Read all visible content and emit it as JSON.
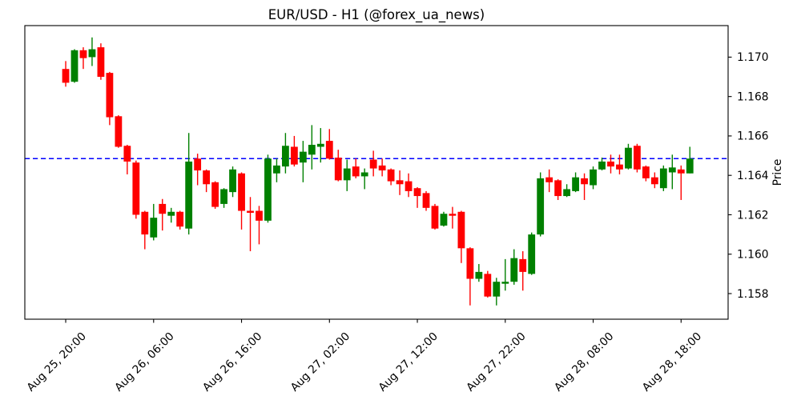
{
  "title": "EUR/USD - H1 (@forex_ua_news)",
  "chart_data": {
    "type": "candlestick",
    "title": "EUR/USD - H1 (@forex_ua_news)",
    "ylabel": "Price",
    "xlabel": "",
    "grid": false,
    "legend": "none",
    "ylim": [
      1.1567,
      1.1716
    ],
    "xlim": [
      -4.65,
      75.35
    ],
    "y_tick_labels": [
      "1.158",
      "1.160",
      "1.162",
      "1.164",
      "1.166",
      "1.168",
      "1.170"
    ],
    "x_ticks": [
      {
        "index": 0,
        "label": "Aug 25, 20:00"
      },
      {
        "index": 10,
        "label": "Aug 26, 06:00"
      },
      {
        "index": 20,
        "label": "Aug 26, 16:00"
      },
      {
        "index": 30,
        "label": "Aug 27, 02:00"
      },
      {
        "index": 40,
        "label": "Aug 27, 12:00"
      },
      {
        "index": 50,
        "label": "Aug 27, 22:00"
      },
      {
        "index": 60,
        "label": "Aug 28, 08:00"
      },
      {
        "index": 70,
        "label": "Aug 28, 18:00"
      }
    ],
    "hline": {
      "value": 1.16485,
      "color": "#0000ff",
      "style": "dashed"
    },
    "colors": {
      "up": "#008000",
      "down": "#ff0000",
      "axis": "#000000",
      "background": "#ffffff"
    },
    "candle_columns": [
      "time",
      "open",
      "high",
      "low",
      "close"
    ],
    "candles": [
      [
        "Aug 25, 20:00",
        1.1694,
        1.1698,
        1.1685,
        1.1687
      ],
      [
        "Aug 25, 21:00",
        1.16875,
        1.1704,
        1.1687,
        1.17035
      ],
      [
        "Aug 25, 22:00",
        1.17035,
        1.1705,
        1.1694,
        1.16995
      ],
      [
        "Aug 25, 23:00",
        1.17,
        1.171,
        1.16955,
        1.1704
      ],
      [
        "Aug 26, 00:00",
        1.1705,
        1.1707,
        1.16885,
        1.169
      ],
      [
        "Aug 26, 01:00",
        1.1692,
        1.16925,
        1.16655,
        1.16695
      ],
      [
        "Aug 26, 02:00",
        1.167,
        1.16705,
        1.1654,
        1.16545
      ],
      [
        "Aug 26, 03:00",
        1.1655,
        1.16555,
        1.16405,
        1.1647
      ],
      [
        "Aug 26, 04:00",
        1.16465,
        1.16475,
        1.1618,
        1.162
      ],
      [
        "Aug 26, 05:00",
        1.16215,
        1.1622,
        1.16025,
        1.161
      ],
      [
        "Aug 26, 06:00",
        1.16085,
        1.16255,
        1.1607,
        1.16185
      ],
      [
        "Aug 26, 07:00",
        1.16255,
        1.1628,
        1.1612,
        1.16205
      ],
      [
        "Aug 26, 08:00",
        1.16195,
        1.16235,
        1.1616,
        1.16215
      ],
      [
        "Aug 26, 09:00",
        1.16215,
        1.1622,
        1.16125,
        1.1614
      ],
      [
        "Aug 26, 10:00",
        1.1613,
        1.16615,
        1.161,
        1.1647
      ],
      [
        "Aug 26, 11:00",
        1.16485,
        1.1651,
        1.1635,
        1.16425
      ],
      [
        "Aug 26, 12:00",
        1.16425,
        1.1643,
        1.16315,
        1.16355
      ],
      [
        "Aug 26, 13:00",
        1.16365,
        1.1637,
        1.1623,
        1.1624
      ],
      [
        "Aug 26, 14:00",
        1.16255,
        1.16335,
        1.16235,
        1.1633
      ],
      [
        "Aug 26, 15:00",
        1.16315,
        1.16445,
        1.1629,
        1.1643
      ],
      [
        "Aug 26, 16:00",
        1.1641,
        1.16415,
        1.16125,
        1.1622
      ],
      [
        "Aug 26, 17:00",
        1.1622,
        1.1629,
        1.16015,
        1.1621
      ],
      [
        "Aug 26, 18:00",
        1.1622,
        1.16245,
        1.1605,
        1.1617
      ],
      [
        "Aug 26, 19:00",
        1.1617,
        1.16505,
        1.1616,
        1.16485
      ],
      [
        "Aug 26, 20:00",
        1.1641,
        1.16485,
        1.16365,
        1.1645
      ],
      [
        "Aug 26, 21:00",
        1.16445,
        1.16615,
        1.1641,
        1.1655
      ],
      [
        "Aug 26, 22:00",
        1.16545,
        1.166,
        1.16445,
        1.16455
      ],
      [
        "Aug 26, 23:00",
        1.16465,
        1.16575,
        1.16365,
        1.1652
      ],
      [
        "Aug 27, 00:00",
        1.16505,
        1.16655,
        1.1643,
        1.16555
      ],
      [
        "Aug 27, 01:00",
        1.16545,
        1.1664,
        1.16465,
        1.1656
      ],
      [
        "Aug 27, 02:00",
        1.16575,
        1.16635,
        1.1648,
        1.16485
      ],
      [
        "Aug 27, 03:00",
        1.1649,
        1.1653,
        1.1637,
        1.16375
      ],
      [
        "Aug 27, 04:00",
        1.16375,
        1.1648,
        1.1632,
        1.16435
      ],
      [
        "Aug 27, 05:00",
        1.16445,
        1.16485,
        1.16385,
        1.16395
      ],
      [
        "Aug 27, 06:00",
        1.16395,
        1.16435,
        1.1633,
        1.16415
      ],
      [
        "Aug 27, 07:00",
        1.1648,
        1.16525,
        1.16395,
        1.16435
      ],
      [
        "Aug 27, 08:00",
        1.1645,
        1.16485,
        1.16395,
        1.16425
      ],
      [
        "Aug 27, 09:00",
        1.1643,
        1.16435,
        1.1635,
        1.1637
      ],
      [
        "Aug 27, 10:00",
        1.16375,
        1.16425,
        1.163,
        1.16355
      ],
      [
        "Aug 27, 11:00",
        1.1637,
        1.1641,
        1.1629,
        1.1632
      ],
      [
        "Aug 27, 12:00",
        1.16335,
        1.1634,
        1.16235,
        1.16295
      ],
      [
        "Aug 27, 13:00",
        1.1631,
        1.1632,
        1.1622,
        1.16235
      ],
      [
        "Aug 27, 14:00",
        1.16245,
        1.16255,
        1.16125,
        1.1613
      ],
      [
        "Aug 27, 15:00",
        1.16145,
        1.16215,
        1.1614,
        1.16205
      ],
      [
        "Aug 27, 16:00",
        1.16205,
        1.1624,
        1.1613,
        1.16195
      ],
      [
        "Aug 27, 17:00",
        1.16215,
        1.1622,
        1.15955,
        1.1603
      ],
      [
        "Aug 27, 18:00",
        1.1603,
        1.16035,
        1.1574,
        1.15875
      ],
      [
        "Aug 27, 19:00",
        1.15875,
        1.1595,
        1.1586,
        1.1591
      ],
      [
        "Aug 27, 20:00",
        1.159,
        1.15915,
        1.1578,
        1.15785
      ],
      [
        "Aug 27, 21:00",
        1.15785,
        1.1588,
        1.1574,
        1.1586
      ],
      [
        "Aug 27, 22:00",
        1.1585,
        1.15975,
        1.15815,
        1.1586
      ],
      [
        "Aug 27, 23:00",
        1.1586,
        1.16025,
        1.15845,
        1.1598
      ],
      [
        "Aug 28, 00:00",
        1.15975,
        1.16015,
        1.15815,
        1.1591
      ],
      [
        "Aug 28, 01:00",
        1.159,
        1.1611,
        1.15895,
        1.161
      ],
      [
        "Aug 28, 02:00",
        1.161,
        1.16415,
        1.1609,
        1.16385
      ],
      [
        "Aug 28, 03:00",
        1.1639,
        1.1643,
        1.16315,
        1.16365
      ],
      [
        "Aug 28, 04:00",
        1.16375,
        1.1638,
        1.16275,
        1.16295
      ],
      [
        "Aug 28, 05:00",
        1.16295,
        1.16355,
        1.1629,
        1.1633
      ],
      [
        "Aug 28, 06:00",
        1.1632,
        1.16415,
        1.16315,
        1.1639
      ],
      [
        "Aug 28, 07:00",
        1.16385,
        1.1641,
        1.16275,
        1.16355
      ],
      [
        "Aug 28, 08:00",
        1.1635,
        1.16445,
        1.1633,
        1.1643
      ],
      [
        "Aug 28, 09:00",
        1.1643,
        1.1649,
        1.16425,
        1.1647
      ],
      [
        "Aug 28, 10:00",
        1.1647,
        1.16505,
        1.1641,
        1.16445
      ],
      [
        "Aug 28, 11:00",
        1.16455,
        1.16505,
        1.16405,
        1.1643
      ],
      [
        "Aug 28, 12:00",
        1.16435,
        1.1656,
        1.1643,
        1.1654
      ],
      [
        "Aug 28, 13:00",
        1.1655,
        1.1656,
        1.16415,
        1.1643
      ],
      [
        "Aug 28, 14:00",
        1.16445,
        1.1645,
        1.1637,
        1.16385
      ],
      [
        "Aug 28, 15:00",
        1.1639,
        1.16415,
        1.16335,
        1.16355
      ],
      [
        "Aug 28, 16:00",
        1.16335,
        1.1645,
        1.1632,
        1.16435
      ],
      [
        "Aug 28, 17:00",
        1.16415,
        1.16505,
        1.1633,
        1.1644
      ],
      [
        "Aug 28, 18:00",
        1.1643,
        1.1645,
        1.16275,
        1.1641
      ],
      [
        "Aug 28, 19:00",
        1.1641,
        1.16545,
        1.1641,
        1.16485
      ]
    ]
  }
}
